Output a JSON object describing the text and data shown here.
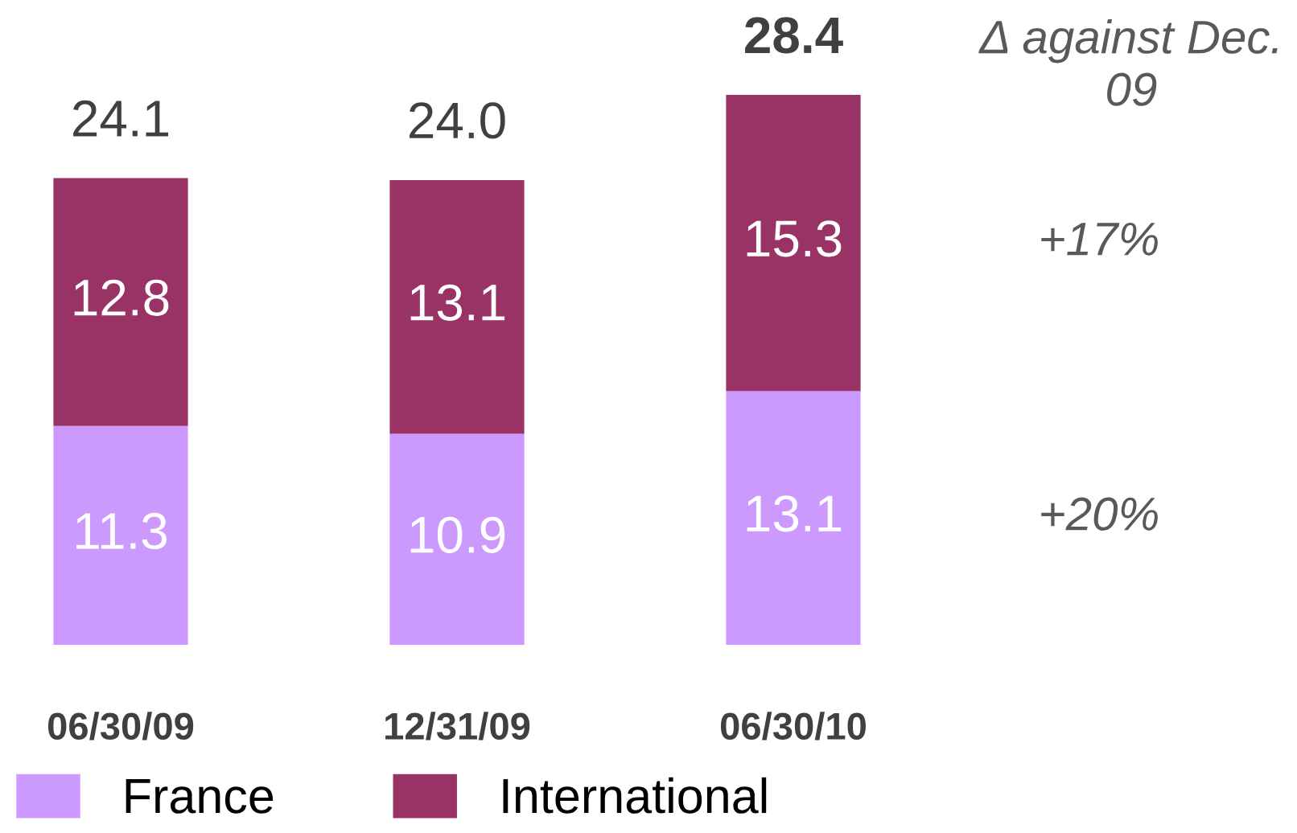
{
  "chart_data": {
    "type": "bar",
    "stacked": true,
    "categories": [
      "06/30/09",
      "12/31/09",
      "06/30/10"
    ],
    "series": [
      {
        "name": "France",
        "color": "#cc99ff",
        "values": [
          11.3,
          10.9,
          13.1
        ]
      },
      {
        "name": "International",
        "color": "#993366",
        "values": [
          12.8,
          13.1,
          15.3
        ]
      }
    ],
    "data_labels": true,
    "totals": [
      "24.1",
      "24.0",
      "28.4"
    ],
    "annotations": [
      "Δ against Dec. 09",
      "+17%",
      "+20%"
    ],
    "tick_labels": "x",
    "legend": "bottom left"
  }
}
